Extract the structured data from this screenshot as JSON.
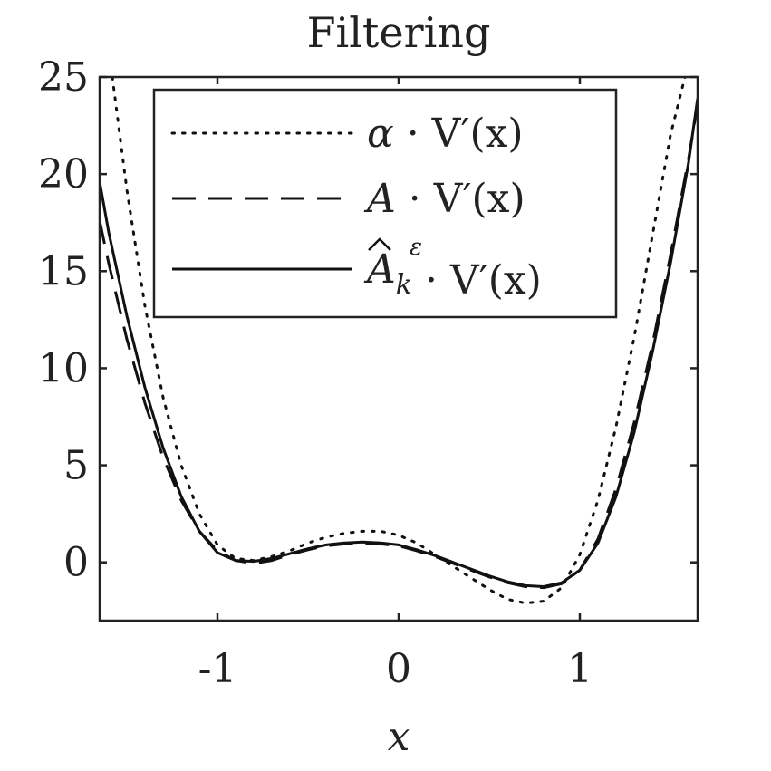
{
  "chart_data": {
    "type": "line",
    "title": "Filtering",
    "xlabel": "x",
    "ylabel": "",
    "xlim": [
      -1.65,
      1.65
    ],
    "ylim": [
      -3,
      25
    ],
    "xticks": [
      -1,
      0,
      1
    ],
    "xtick_labels": [
      "-1",
      "0",
      "1"
    ],
    "yticks": [
      0,
      5,
      10,
      15,
      20,
      25
    ],
    "ytick_labels": [
      "0",
      "5",
      "10",
      "15",
      "20",
      "25"
    ],
    "grid": false,
    "legend_placement": "top",
    "series": [
      {
        "name": "α · V′(x)",
        "style": "dotted",
        "x": [
          -1.58,
          -1.5,
          -1.4,
          -1.3,
          -1.2,
          -1.1,
          -1.0,
          -0.9,
          -0.8,
          -0.7,
          -0.6,
          -0.5,
          -0.4,
          -0.3,
          -0.2,
          -0.1,
          0.0,
          0.1,
          0.2,
          0.3,
          0.4,
          0.5,
          0.6,
          0.7,
          0.8,
          0.9,
          1.0,
          1.1,
          1.2,
          1.3,
          1.4,
          1.5,
          1.58
        ],
        "y": [
          25.0,
          19.2,
          13.2,
          8.5,
          5.0,
          2.5,
          0.9,
          0.2,
          0.1,
          0.3,
          0.6,
          1.0,
          1.3,
          1.5,
          1.6,
          1.6,
          1.4,
          1.0,
          0.4,
          -0.2,
          -0.8,
          -1.4,
          -1.9,
          -2.1,
          -2.0,
          -1.3,
          0.4,
          3.2,
          7.0,
          11.6,
          16.8,
          22.0,
          25.0
        ]
      },
      {
        "name": "A · V′(x)",
        "style": "dashed",
        "x": [
          -1.65,
          -1.6,
          -1.5,
          -1.4,
          -1.3,
          -1.2,
          -1.1,
          -1.0,
          -0.9,
          -0.8,
          -0.7,
          -0.6,
          -0.5,
          -0.4,
          -0.3,
          -0.2,
          -0.1,
          0.0,
          0.1,
          0.2,
          0.3,
          0.4,
          0.5,
          0.6,
          0.7,
          0.8,
          0.9,
          1.0,
          1.1,
          1.2,
          1.3,
          1.4,
          1.5,
          1.6,
          1.65
        ],
        "y": [
          17.6,
          15.4,
          11.5,
          8.2,
          5.4,
          3.2,
          1.6,
          0.6,
          0.1,
          -0.05,
          0.1,
          0.4,
          0.65,
          0.85,
          0.95,
          1.0,
          0.95,
          0.85,
          0.6,
          0.3,
          -0.05,
          -0.4,
          -0.75,
          -1.05,
          -1.25,
          -1.3,
          -1.1,
          -0.4,
          1.2,
          3.8,
          7.2,
          11.2,
          15.8,
          20.8,
          23.6
        ]
      },
      {
        "name": "Â_k^ε · V′(x)",
        "style": "solid",
        "x": [
          -1.65,
          -1.6,
          -1.5,
          -1.4,
          -1.3,
          -1.2,
          -1.1,
          -1.0,
          -0.9,
          -0.8,
          -0.7,
          -0.6,
          -0.5,
          -0.4,
          -0.3,
          -0.2,
          -0.1,
          0.0,
          0.1,
          0.2,
          0.3,
          0.4,
          0.5,
          0.6,
          0.7,
          0.8,
          0.9,
          1.0,
          1.1,
          1.2,
          1.3,
          1.4,
          1.5,
          1.6,
          1.65
        ],
        "y": [
          19.6,
          17.0,
          12.7,
          9.0,
          5.9,
          3.4,
          1.6,
          0.5,
          0.1,
          0.05,
          0.2,
          0.45,
          0.7,
          0.9,
          1.0,
          1.05,
          1.0,
          0.9,
          0.65,
          0.35,
          0.0,
          -0.35,
          -0.7,
          -1.0,
          -1.2,
          -1.25,
          -1.05,
          -0.4,
          1.0,
          3.4,
          6.7,
          10.8,
          15.4,
          20.6,
          23.9
        ]
      }
    ],
    "legend_entries": [
      {
        "prefix": "α",
        "suffix": " · V′(x)",
        "hat": false,
        "sub": "",
        "sup": ""
      },
      {
        "prefix": "A",
        "suffix": " · V′(x)",
        "hat": false,
        "sub": "",
        "sup": ""
      },
      {
        "prefix": "A",
        "suffix": " · V′(x)",
        "hat": true,
        "sub": "k",
        "sup": "ε"
      }
    ]
  }
}
